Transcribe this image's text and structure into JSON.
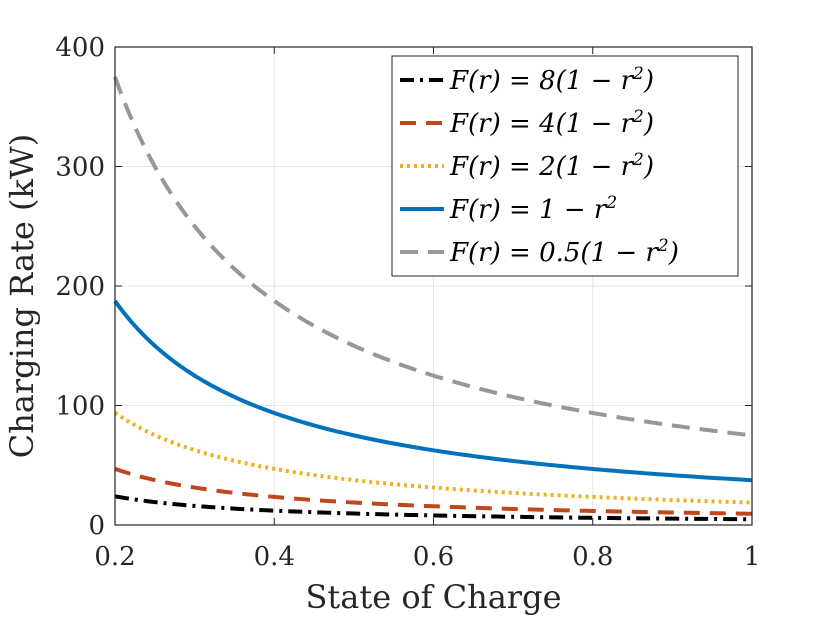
{
  "chart_data": {
    "type": "line",
    "title": "",
    "xlabel": "State of Charge",
    "ylabel": "Charging Rate (kW)",
    "xlim": [
      0.2,
      1.0
    ],
    "ylim": [
      0,
      400
    ],
    "xticks": [
      0.2,
      0.4,
      0.6,
      0.8,
      1.0
    ],
    "xtick_labels": [
      "0.2",
      "0.4",
      "0.6",
      "0.8",
      "1"
    ],
    "yticks": [
      0,
      100,
      200,
      300,
      400
    ],
    "ytick_labels": [
      "0",
      "100",
      "200",
      "300",
      "400"
    ],
    "grid": true,
    "legend_position": "top-right",
    "model": "rate = k / x",
    "x": [
      0.2,
      0.25,
      0.3,
      0.35,
      0.4,
      0.45,
      0.5,
      0.55,
      0.6,
      0.65,
      0.7,
      0.75,
      0.8,
      0.85,
      0.9,
      0.95,
      1.0
    ],
    "series": [
      {
        "name": "F(r) = 8(1 − r²)",
        "label_main": "F(r) = 8(1 − r",
        "label_sup": "2",
        "label_end": ")",
        "color": "#000000",
        "dash": "14 6 3 6",
        "k": 4.8,
        "values": [
          24.0,
          19.2,
          16.0,
          13.7,
          12.0,
          10.7,
          9.6,
          8.7,
          8.0,
          7.4,
          6.9,
          6.4,
          6.0,
          5.6,
          5.3,
          5.1,
          4.8
        ]
      },
      {
        "name": "F(r) = 4(1 − r²)",
        "label_main": "F(r) = 4(1 − r",
        "label_sup": "2",
        "label_end": ")",
        "color": "#C0461B",
        "dash": "16 10",
        "k": 9.4,
        "values": [
          47.0,
          37.6,
          31.3,
          26.9,
          23.5,
          20.9,
          18.8,
          17.1,
          15.7,
          14.5,
          13.4,
          12.5,
          11.8,
          11.1,
          10.4,
          9.9,
          9.4
        ]
      },
      {
        "name": "F(r) = 2(1 − r²)",
        "label_main": "F(r) = 2(1 − r",
        "label_sup": "2",
        "label_end": ")",
        "color": "#EDB120",
        "dash": "3 4",
        "k": 18.8,
        "values": [
          94.0,
          75.2,
          62.7,
          53.7,
          47.0,
          41.8,
          37.6,
          34.2,
          31.3,
          28.9,
          26.9,
          25.1,
          23.5,
          22.1,
          20.9,
          19.8,
          18.8
        ]
      },
      {
        "name": "F(r) = 1 − r²",
        "label_main": "F(r) = 1 − r",
        "label_sup": "2",
        "label_end": "",
        "color": "#0072BD",
        "dash": "",
        "k": 37.5,
        "values": [
          187.5,
          150.0,
          125.0,
          107.1,
          93.8,
          83.3,
          75.0,
          68.2,
          62.5,
          57.7,
          53.6,
          50.0,
          46.9,
          44.1,
          41.7,
          39.5,
          37.5
        ]
      },
      {
        "name": "F(r) = 0.5(1 − r²)",
        "label_main": "F(r) = 0.5(1 − r",
        "label_sup": "2",
        "label_end": ")",
        "color": "#979797",
        "dash": "18 10",
        "k": 75.0,
        "values": [
          375.0,
          300.0,
          250.0,
          214.3,
          187.5,
          166.7,
          150.0,
          136.4,
          125.0,
          115.4,
          107.1,
          100.0,
          93.8,
          88.2,
          83.3,
          78.9,
          75.0
        ]
      }
    ]
  }
}
